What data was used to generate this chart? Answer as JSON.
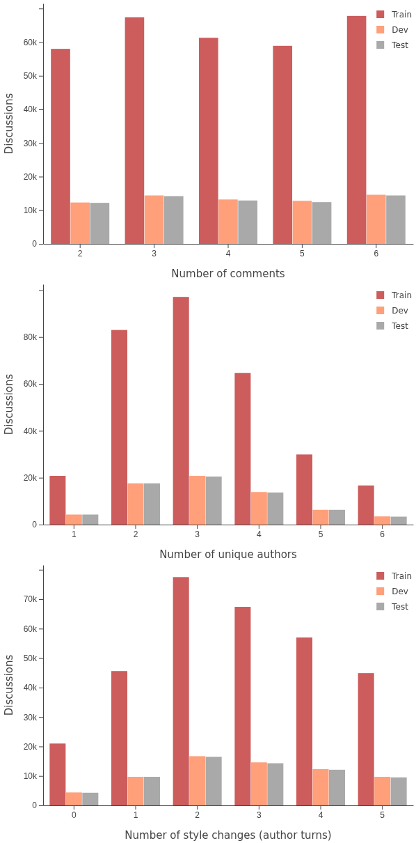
{
  "chart_data": [
    {
      "type": "bar",
      "xlabel": "Number of comments",
      "ylabel": "Discussions",
      "categories": [
        "2",
        "3",
        "4",
        "5",
        "6"
      ],
      "ylim": [
        0,
        71500
      ],
      "yticks": [
        {
          "value": 0,
          "label": "0"
        },
        {
          "value": 10000,
          "label": "10k"
        },
        {
          "value": 20000,
          "label": "20k"
        },
        {
          "value": 30000,
          "label": "30k"
        },
        {
          "value": 40000,
          "label": "40k"
        },
        {
          "value": 50000,
          "label": "50k"
        },
        {
          "value": 60000,
          "label": "60k"
        },
        {
          "value": 70000,
          "label": null
        }
      ],
      "legend": "top right",
      "grid": false,
      "series": [
        {
          "name": "Train",
          "color": "#cd5c5c",
          "values": [
            58000,
            67400,
            61300,
            58900,
            67800
          ]
        },
        {
          "name": "Dev",
          "color": "#ffa07a",
          "values": [
            12300,
            14400,
            13200,
            12800,
            14600
          ]
        },
        {
          "name": "Test",
          "color": "#a9a9a9",
          "values": [
            12200,
            14200,
            12900,
            12400,
            14400
          ]
        }
      ]
    },
    {
      "type": "bar",
      "xlabel": "Number of unique authors",
      "ylabel": "Discussions",
      "categories": [
        "1",
        "2",
        "3",
        "4",
        "5",
        "6"
      ],
      "ylim": [
        0,
        102500
      ],
      "yticks": [
        {
          "value": 0,
          "label": "0"
        },
        {
          "value": 20000,
          "label": "20k"
        },
        {
          "value": 40000,
          "label": "40k"
        },
        {
          "value": 60000,
          "label": "60k"
        },
        {
          "value": 80000,
          "label": "80k"
        },
        {
          "value": 100000,
          "label": null
        }
      ],
      "legend": "top right",
      "grid": false,
      "series": [
        {
          "name": "Train",
          "color": "#cd5c5c",
          "values": [
            20800,
            83000,
            97100,
            64700,
            29900,
            16700
          ]
        },
        {
          "name": "Dev",
          "color": "#ffa07a",
          "values": [
            4300,
            17600,
            20800,
            13900,
            6300,
            3500
          ]
        },
        {
          "name": "Test",
          "color": "#a9a9a9",
          "values": [
            4300,
            17600,
            20500,
            13700,
            6300,
            3400
          ]
        }
      ]
    },
    {
      "type": "bar",
      "xlabel": "Number of style changes (author turns)",
      "ylabel": "Discussions",
      "categories": [
        "0",
        "1",
        "2",
        "3",
        "4",
        "5"
      ],
      "ylim": [
        0,
        81600
      ],
      "yticks": [
        {
          "value": 0,
          "label": "0"
        },
        {
          "value": 10000,
          "label": "10k"
        },
        {
          "value": 20000,
          "label": "20k"
        },
        {
          "value": 30000,
          "label": "30k"
        },
        {
          "value": 40000,
          "label": "40k"
        },
        {
          "value": 50000,
          "label": "50k"
        },
        {
          "value": 60000,
          "label": "60k"
        },
        {
          "value": 70000,
          "label": "70k"
        },
        {
          "value": 80000,
          "label": null
        }
      ],
      "legend": "top right",
      "grid": false,
      "series": [
        {
          "name": "Train",
          "color": "#cd5c5c",
          "values": [
            21000,
            45600,
            77500,
            67400,
            57000,
            44900
          ]
        },
        {
          "name": "Dev",
          "color": "#ffa07a",
          "values": [
            4400,
            9700,
            16700,
            14600,
            12300,
            9700
          ]
        },
        {
          "name": "Test",
          "color": "#a9a9a9",
          "values": [
            4300,
            9700,
            16500,
            14300,
            12100,
            9500
          ]
        }
      ]
    }
  ]
}
